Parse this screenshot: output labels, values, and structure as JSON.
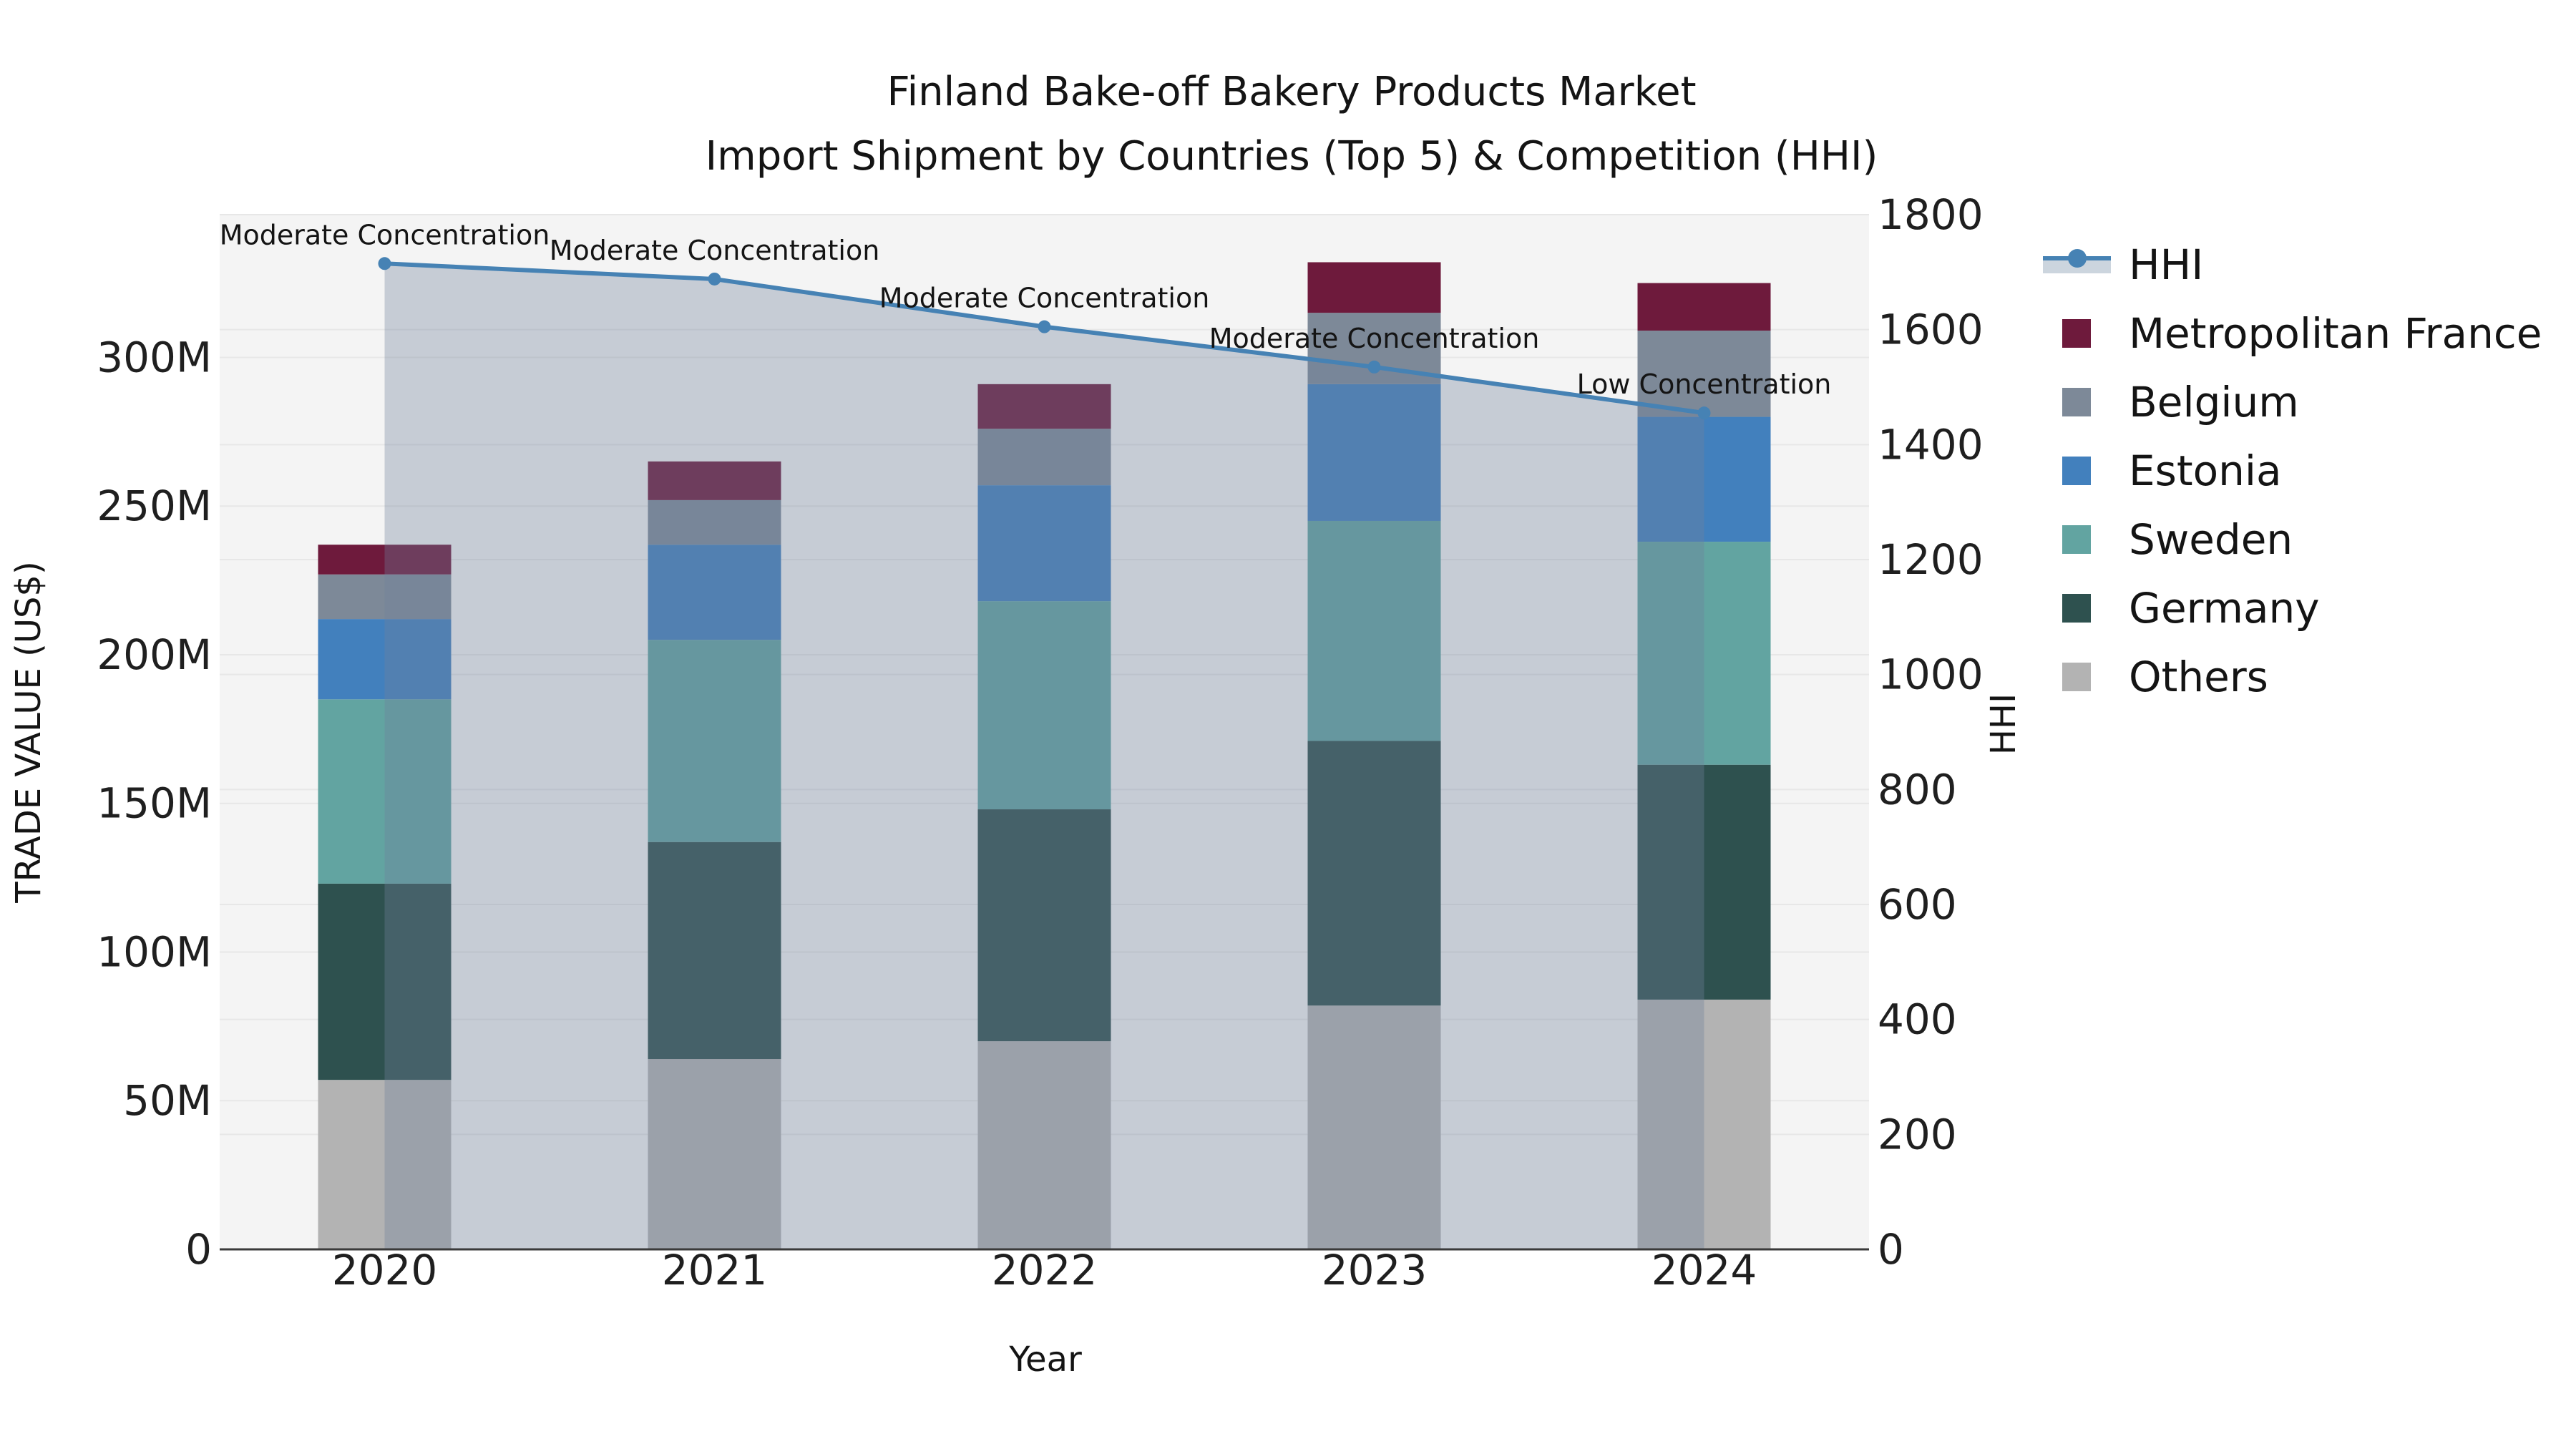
{
  "title": {
    "line1": "Finland Bake-off Bakery Products Market",
    "line2": "Import Shipment by Countries (Top 5) & Competition (HHI)"
  },
  "axes": {
    "x_label": "Year",
    "y_left_label": "TRADE VALUE (US$)",
    "y_right_label": "HHI",
    "y_left_ticks": [
      {
        "label": "0",
        "value": 0
      },
      {
        "label": "50M",
        "value": 50
      },
      {
        "label": "100M",
        "value": 100
      },
      {
        "label": "150M",
        "value": 150
      },
      {
        "label": "200M",
        "value": 200
      },
      {
        "label": "250M",
        "value": 250
      },
      {
        "label": "300M",
        "value": 300
      }
    ],
    "y_left_max": 348,
    "y_right_ticks": [
      {
        "label": "0",
        "value": 0
      },
      {
        "label": "200",
        "value": 200
      },
      {
        "label": "400",
        "value": 400
      },
      {
        "label": "600",
        "value": 600
      },
      {
        "label": "800",
        "value": 800
      },
      {
        "label": "1000",
        "value": 1000
      },
      {
        "label": "1200",
        "value": 1200
      },
      {
        "label": "1400",
        "value": 1400
      },
      {
        "label": "1600",
        "value": 1600
      },
      {
        "label": "1800",
        "value": 1800
      }
    ],
    "y_right_max": 1800
  },
  "chart_data": {
    "type": "bar",
    "subtype": "stacked-bars-with-secondary-axis-line",
    "title": "Finland Bake-off Bakery Products Market — Import Shipment by Countries (Top 5) & Competition (HHI)",
    "xlabel": "Year",
    "ylabel_left": "TRADE VALUE (US$)",
    "ylabel_right": "HHI",
    "categories": [
      "2020",
      "2021",
      "2022",
      "2023",
      "2024"
    ],
    "values_unit": "million US$ (read from left axis)",
    "series": [
      {
        "name": "Others",
        "color": "#b3b3b3",
        "values": [
          57,
          64,
          70,
          82,
          84
        ]
      },
      {
        "name": "Germany",
        "color": "#2e514f",
        "values": [
          66,
          73,
          78,
          89,
          79
        ]
      },
      {
        "name": "Sweden",
        "color": "#62a4a1",
        "values": [
          62,
          68,
          70,
          74,
          75
        ]
      },
      {
        "name": "Estonia",
        "color": "#4280bd",
        "values": [
          27,
          32,
          39,
          46,
          42
        ]
      },
      {
        "name": "Belgium",
        "color": "#7d8998",
        "values": [
          15,
          15,
          19,
          24,
          29
        ]
      },
      {
        "name": "Metropolitan France",
        "color": "#6e1a3c",
        "values": [
          10,
          13,
          15,
          17,
          16
        ]
      }
    ],
    "bar_totals": [
      237,
      265,
      291,
      332,
      325
    ],
    "line_series": {
      "name": "HHI",
      "axis": "right",
      "color": "#4682b4",
      "area_fill": "rgba(112,130,155,0.35)",
      "values": [
        1715,
        1688,
        1605,
        1535,
        1455
      ],
      "annotations": [
        "Moderate Concentration",
        "Moderate Concentration",
        "Moderate Concentration",
        "Moderate Concentration",
        "Low Concentration"
      ]
    },
    "ylim_left": [
      0,
      348
    ],
    "ylim_right": [
      0,
      1800
    ],
    "grid": true,
    "plot_background": "#f4f4f4",
    "grid_color": "#e7e7e7",
    "legend_position": "right"
  },
  "legend": {
    "items": [
      {
        "label": "HHI",
        "type": "line",
        "color": "#4682b4",
        "band": "#ccd5de"
      },
      {
        "label": "Metropolitan France",
        "type": "swatch",
        "color": "#6e1a3c"
      },
      {
        "label": "Belgium",
        "type": "swatch",
        "color": "#7d8998"
      },
      {
        "label": "Estonia",
        "type": "swatch",
        "color": "#4280bd"
      },
      {
        "label": "Sweden",
        "type": "swatch",
        "color": "#62a4a1"
      },
      {
        "label": "Germany",
        "type": "swatch",
        "color": "#2e514f"
      },
      {
        "label": "Others",
        "type": "swatch",
        "color": "#b3b3b3"
      }
    ]
  }
}
